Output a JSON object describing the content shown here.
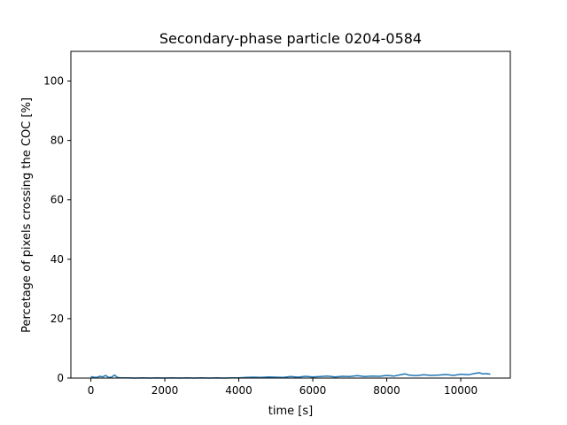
{
  "chart_data": {
    "type": "line",
    "title": "Secondary-phase particle 0204-0584",
    "xlabel": "time [s]",
    "ylabel": "Percetage of pixels crossing the COC [%]",
    "xlim": [
      -540,
      11340
    ],
    "ylim": [
      0,
      110
    ],
    "xticks": [
      0,
      2000,
      4000,
      6000,
      8000,
      10000
    ],
    "yticks": [
      0,
      20,
      40,
      60,
      80,
      100
    ],
    "grid": false,
    "legend": "none",
    "series": [
      {
        "color": "#1f77b4",
        "x": [
          0,
          80,
          160,
          240,
          320,
          400,
          480,
          560,
          640,
          720,
          800,
          900,
          1000,
          1200,
          1400,
          1600,
          1800,
          2000,
          2200,
          2400,
          2600,
          2800,
          3000,
          3200,
          3400,
          3600,
          3800,
          4000,
          4200,
          4400,
          4600,
          4800,
          5000,
          5200,
          5400,
          5600,
          5800,
          6000,
          6200,
          6400,
          6600,
          6800,
          7000,
          7200,
          7400,
          7600,
          7800,
          8000,
          8200,
          8400,
          8500,
          8600,
          8800,
          9000,
          9200,
          9400,
          9600,
          9800,
          10000,
          10200,
          10400,
          10500,
          10600,
          10700,
          10800
        ],
        "y": [
          0.5,
          0.3,
          0.2,
          0.6,
          0.4,
          0.9,
          0.2,
          0.3,
          1.0,
          0.2,
          0.1,
          0.1,
          0.1,
          0.0,
          0.1,
          0.0,
          0.1,
          0.0,
          0.1,
          0.0,
          0.1,
          0.0,
          0.1,
          0.0,
          0.1,
          0.0,
          0.1,
          0.1,
          0.2,
          0.3,
          0.2,
          0.4,
          0.3,
          0.2,
          0.5,
          0.3,
          0.6,
          0.4,
          0.5,
          0.7,
          0.4,
          0.6,
          0.5,
          0.8,
          0.5,
          0.7,
          0.6,
          0.9,
          0.7,
          1.2,
          1.4,
          1.0,
          0.8,
          1.1,
          0.9,
          1.0,
          1.2,
          0.9,
          1.3,
          1.1,
          1.6,
          1.8,
          1.4,
          1.5,
          1.3
        ]
      }
    ]
  }
}
